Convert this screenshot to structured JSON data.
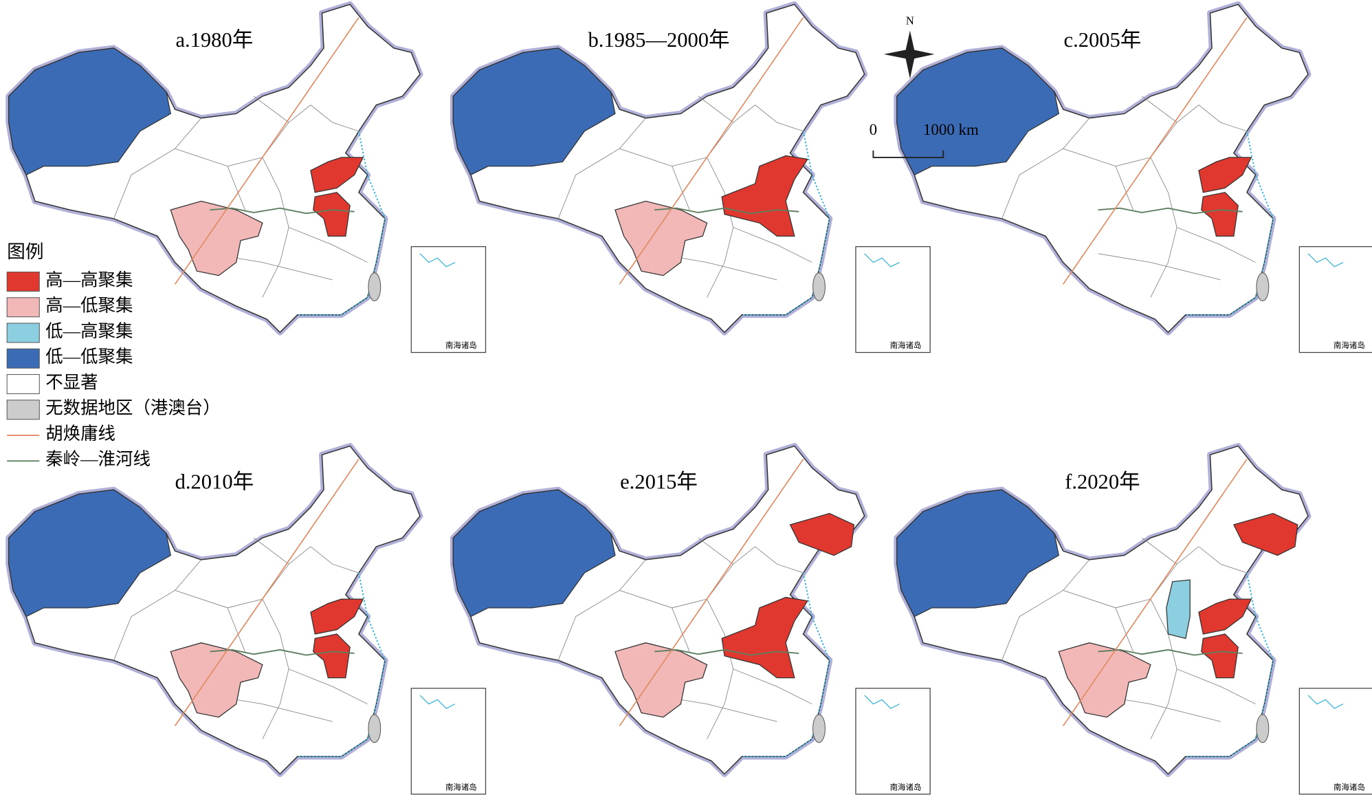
{
  "panels": [
    {
      "title": "a.1980年"
    },
    {
      "title": "b.1985—2000年"
    },
    {
      "title": "c.2005年"
    },
    {
      "title": "d.2010年"
    },
    {
      "title": "e.2015年"
    },
    {
      "title": "f.2020年"
    }
  ],
  "legend": {
    "title": "图例",
    "items": [
      {
        "label": "高—高聚集",
        "color": "#e0382f"
      },
      {
        "label": "高—低聚集",
        "color": "#f2b8b8"
      },
      {
        "label": "低—高聚集",
        "color": "#8ccfe0"
      },
      {
        "label": "低—低聚集",
        "color": "#3b6bb5"
      },
      {
        "label": "不显著",
        "color": "#ffffff"
      },
      {
        "label": "无数据地区（港澳台）",
        "color": "#cccccc"
      },
      {
        "label": "胡焕庸线",
        "color": "#e08a60"
      },
      {
        "label": "秦岭—淮河线",
        "color": "#5f7f5f"
      }
    ]
  },
  "compass": {
    "label": "N"
  },
  "scale_bar": {
    "start": "0",
    "end": "1000 km"
  },
  "inset_label": "南海诸岛"
}
